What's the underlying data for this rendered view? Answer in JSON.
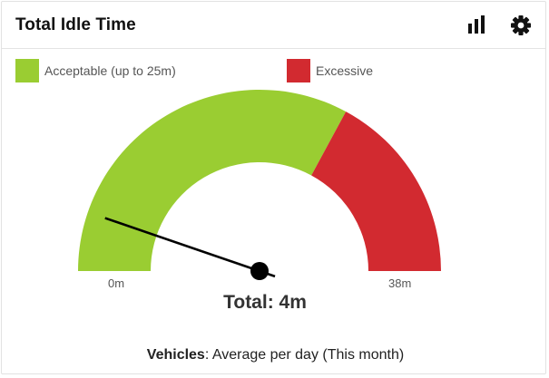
{
  "widget": {
    "title": "Total Idle Time",
    "icons": {
      "chart": "bar-chart-icon",
      "settings": "gear-icon"
    }
  },
  "legend": {
    "acceptable": {
      "label": "Acceptable (up to 25m)",
      "color": "#9acd32"
    },
    "excessive": {
      "label": "Excessive",
      "color": "#d22a30"
    }
  },
  "chart_data": {
    "type": "gauge",
    "min": 0,
    "max": 38,
    "min_label": "0m",
    "max_label": "38m",
    "bands": [
      {
        "name": "Acceptable (up to 25m)",
        "from": 0,
        "to": 25,
        "color": "#9acd32"
      },
      {
        "name": "Excessive",
        "from": 25,
        "to": 38,
        "color": "#d22a30"
      }
    ],
    "value": 4,
    "value_label": "Total: 4m"
  },
  "footer": {
    "subject": "Vehicles",
    "text": ": Average per day (This month)"
  }
}
